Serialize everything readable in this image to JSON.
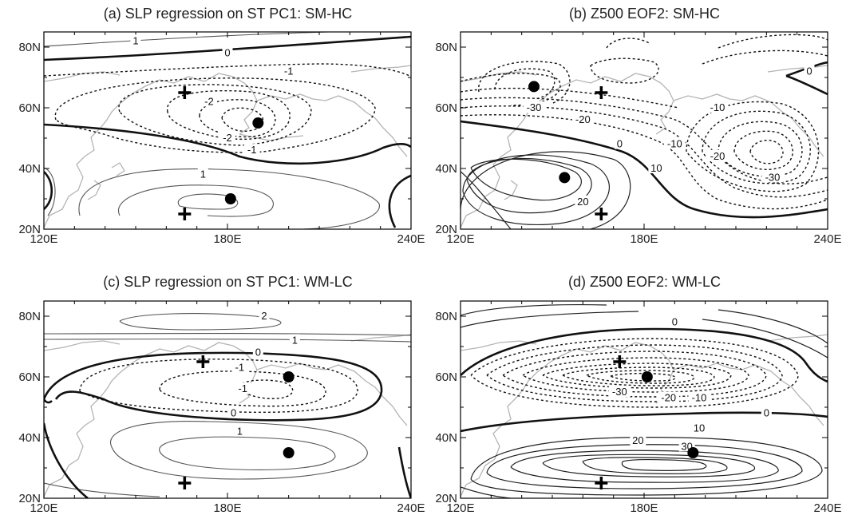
{
  "chart_data": [
    {
      "type": "contour-map",
      "title": "(a) SLP regression on ST PC1: SM-HC",
      "x_ticks": [
        "120E",
        "180E",
        "240E"
      ],
      "y_ticks": [
        "80N",
        "60N",
        "40N",
        "20N"
      ],
      "xlim": [
        120,
        240
      ],
      "ylim": [
        20,
        85
      ],
      "contour_labels": [
        {
          "text": "1",
          "lon": 150,
          "lat": 82
        },
        {
          "text": "0",
          "lon": 180,
          "lat": 78
        },
        {
          "text": "-1",
          "lon": 200,
          "lat": 72
        },
        {
          "text": "-2",
          "lon": 174,
          "lat": 62
        },
        {
          "text": "-2",
          "lon": 180,
          "lat": 50
        },
        {
          "text": "-1",
          "lon": 188,
          "lat": 46
        },
        {
          "text": "1",
          "lon": 172,
          "lat": 38
        }
      ],
      "markers": [
        {
          "symbol": "plus",
          "lon": 166,
          "lat": 65
        },
        {
          "symbol": "dot",
          "lon": 190,
          "lat": 55
        },
        {
          "symbol": "dot",
          "lon": 181,
          "lat": 30
        },
        {
          "symbol": "plus",
          "lon": 166,
          "lat": 25
        }
      ]
    },
    {
      "type": "contour-map",
      "title": "(b) Z500 EOF2: SM-HC",
      "x_ticks": [
        "120E",
        "180E",
        "240E"
      ],
      "y_ticks": [
        "80N",
        "60N",
        "40N",
        "20N"
      ],
      "xlim": [
        120,
        240
      ],
      "ylim": [
        20,
        85
      ],
      "contour_labels": [
        {
          "text": "0",
          "lon": 234,
          "lat": 72
        },
        {
          "text": "-30",
          "lon": 144,
          "lat": 60
        },
        {
          "text": "-20",
          "lon": 160,
          "lat": 56
        },
        {
          "text": "-10",
          "lon": 204,
          "lat": 60
        },
        {
          "text": "0",
          "lon": 172,
          "lat": 48
        },
        {
          "text": "-10",
          "lon": 190,
          "lat": 48
        },
        {
          "text": "-20",
          "lon": 204,
          "lat": 44
        },
        {
          "text": "-30",
          "lon": 222,
          "lat": 37
        },
        {
          "text": "10",
          "lon": 184,
          "lat": 40
        },
        {
          "text": "20",
          "lon": 160,
          "lat": 29
        }
      ],
      "markers": [
        {
          "symbol": "dot",
          "lon": 144,
          "lat": 67
        },
        {
          "symbol": "plus",
          "lon": 166,
          "lat": 65
        },
        {
          "symbol": "dot",
          "lon": 154,
          "lat": 37
        },
        {
          "symbol": "plus",
          "lon": 166,
          "lat": 25
        }
      ]
    },
    {
      "type": "contour-map",
      "title": "(c) SLP regression on ST PC1: WM-LC",
      "x_ticks": [
        "120E",
        "180E",
        "240E"
      ],
      "y_ticks": [
        "80N",
        "60N",
        "40N",
        "20N"
      ],
      "xlim": [
        120,
        240
      ],
      "ylim": [
        20,
        85
      ],
      "contour_labels": [
        {
          "text": "2",
          "lon": 192,
          "lat": 80
        },
        {
          "text": "1",
          "lon": 202,
          "lat": 72
        },
        {
          "text": "0",
          "lon": 190,
          "lat": 68
        },
        {
          "text": "-1",
          "lon": 184,
          "lat": 63
        },
        {
          "text": "-1",
          "lon": 185,
          "lat": 56
        },
        {
          "text": "0",
          "lon": 182,
          "lat": 48
        },
        {
          "text": "1",
          "lon": 184,
          "lat": 42
        }
      ],
      "markers": [
        {
          "symbol": "plus",
          "lon": 172,
          "lat": 65
        },
        {
          "symbol": "dot",
          "lon": 200,
          "lat": 60
        },
        {
          "symbol": "dot",
          "lon": 200,
          "lat": 35
        },
        {
          "symbol": "plus",
          "lon": 166,
          "lat": 25
        }
      ]
    },
    {
      "type": "contour-map",
      "title": "(d) Z500 EOF2: WM-LC",
      "x_ticks": [
        "120E",
        "180E",
        "240E"
      ],
      "y_ticks": [
        "80N",
        "60N",
        "40N",
        "20N"
      ],
      "xlim": [
        120,
        240
      ],
      "ylim": [
        20,
        85
      ],
      "contour_labels": [
        {
          "text": "0",
          "lon": 190,
          "lat": 78
        },
        {
          "text": "-30",
          "lon": 172,
          "lat": 55
        },
        {
          "text": "-20",
          "lon": 188,
          "lat": 53
        },
        {
          "text": "-10",
          "lon": 198,
          "lat": 53
        },
        {
          "text": "0",
          "lon": 220,
          "lat": 48
        },
        {
          "text": "10",
          "lon": 198,
          "lat": 43
        },
        {
          "text": "20",
          "lon": 178,
          "lat": 39
        },
        {
          "text": "30",
          "lon": 194,
          "lat": 37
        }
      ],
      "markers": [
        {
          "symbol": "plus",
          "lon": 172,
          "lat": 65
        },
        {
          "symbol": "dot",
          "lon": 181,
          "lat": 60
        },
        {
          "symbol": "dot",
          "lon": 196,
          "lat": 35
        },
        {
          "symbol": "plus",
          "lon": 166,
          "lat": 25
        }
      ]
    }
  ]
}
